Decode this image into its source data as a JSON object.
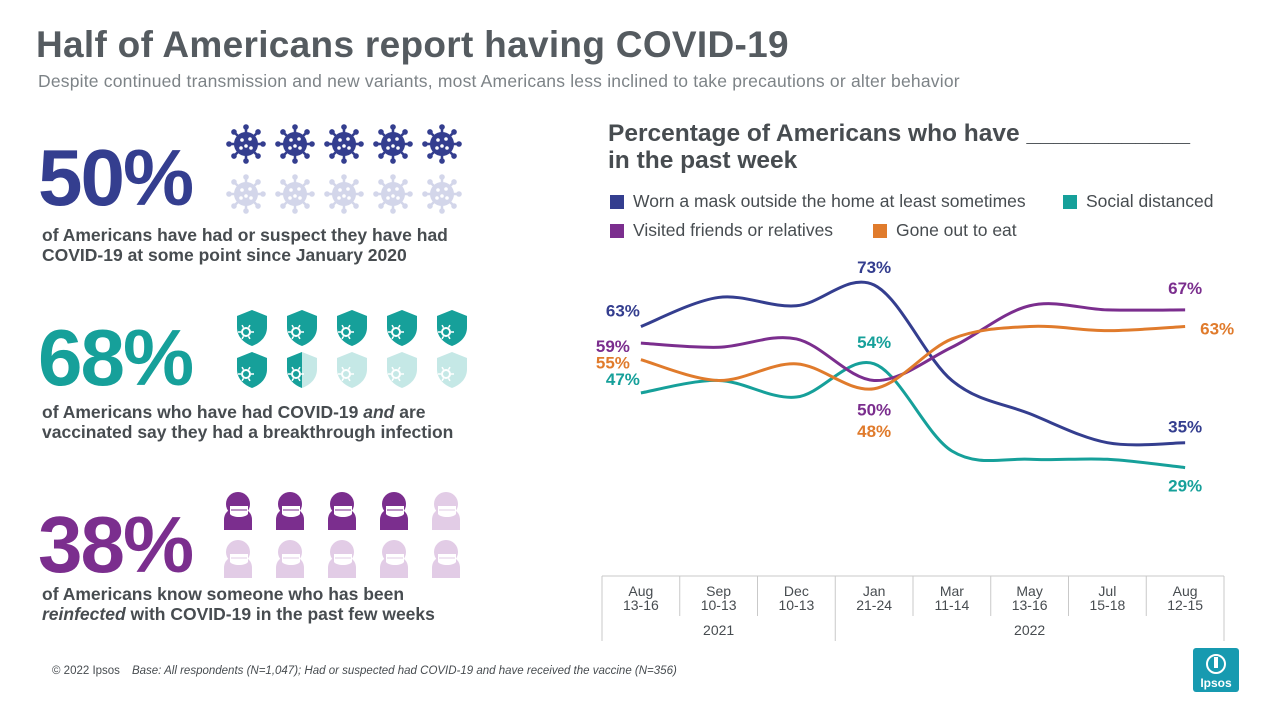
{
  "title": "Half of Americans report having COVID-19",
  "subtitle": "Despite continued transmission and new variants, most Americans less inclined to take precautions or alter behavior",
  "stats": [
    {
      "value": "50%",
      "line1": "of Americans have had or suspect they have had",
      "line2": "COVID-19 at some point since January 2020",
      "icon": "virus-icon",
      "color": "#343e8f",
      "light": "#d3d6ea",
      "filled": 5,
      "total": 10
    },
    {
      "value": "68%",
      "line1_a": "of Americans who have had COVID-19 ",
      "line1_em": "and",
      "line1_b": " are",
      "line2": "vaccinated say they had a breakthrough infection",
      "icon": "shield-virus-icon",
      "color": "#16a09a",
      "light": "#c5e8e6",
      "filled": 6.5,
      "total": 10
    },
    {
      "value": "38%",
      "line1": "of Americans know someone who has been",
      "line2_em": "reinfected",
      "line2_b": " with COVID-19 in the past few weeks",
      "icon": "masked-person-icon",
      "color": "#7b2e8e",
      "light": "#e2cce6",
      "filled": 4,
      "total": 10
    }
  ],
  "chart_data": {
    "type": "line",
    "title_line1": "Percentage of Americans who have ____________",
    "title_line2": "in the past week",
    "categories": [
      "Aug 13-16",
      "Sep 10-13",
      "Dec 10-13",
      "Jan 21-24",
      "Mar 11-14",
      "May 13-16",
      "Jul 15-18",
      "Aug 12-15"
    ],
    "category_lines": [
      [
        "Aug",
        "13-16"
      ],
      [
        "Sep",
        "10-13"
      ],
      [
        "Dec",
        "10-13"
      ],
      [
        "Jan",
        "21-24"
      ],
      [
        "Mar",
        "11-14"
      ],
      [
        "May",
        "13-16"
      ],
      [
        "Jul",
        "15-18"
      ],
      [
        "Aug",
        "12-15"
      ]
    ],
    "years": [
      {
        "label": "2021",
        "span": [
          0,
          2
        ]
      },
      {
        "label": "2022",
        "span": [
          3,
          7
        ]
      }
    ],
    "ylim": [
      20,
      80
    ],
    "series": [
      {
        "name": "Worn a mask outside the home at least sometimes",
        "color": "#343e8f",
        "values": [
          63,
          70,
          68,
          73,
          50,
          42,
          35,
          35
        ],
        "labels": {
          "0": "63%",
          "3": "73%",
          "7": "35%"
        }
      },
      {
        "name": "Social distanced",
        "color": "#16a09a",
        "values": [
          47,
          50,
          46,
          54,
          33,
          31,
          31,
          29
        ],
        "labels": {
          "0": "47%",
          "3": "54%",
          "7": "29%"
        }
      },
      {
        "name": "Visited friends or relatives",
        "color": "#7b2e8e",
        "values": [
          59,
          58,
          60,
          50,
          58,
          68,
          67,
          67
        ],
        "labels": {
          "0": "59%",
          "3": "50%",
          "7": "67%"
        }
      },
      {
        "name": "Gone out to eat",
        "color": "#e07b2c",
        "values": [
          55,
          50,
          54,
          48,
          60,
          63,
          62,
          63
        ],
        "labels": {
          "0": "55%",
          "3": "48%",
          "7": "63%"
        }
      }
    ]
  },
  "footer": {
    "copyright": "© 2022 Ipsos",
    "base": "Base: All respondents (N=1,047); Had or suspected had COVID-19 and have received the vaccine (N=356)"
  },
  "logo": "Ipsos"
}
